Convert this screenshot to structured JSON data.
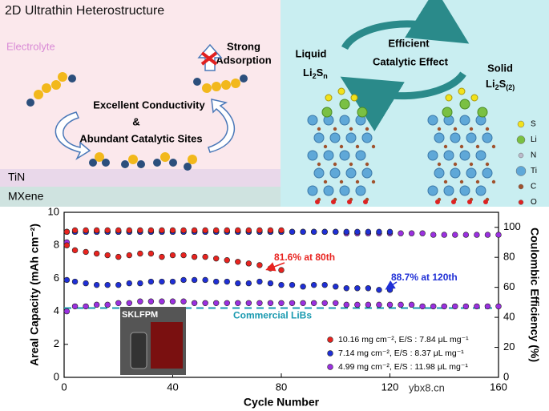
{
  "schematic": {
    "left": {
      "title": "2D Ultrathin Heterostructure",
      "electrolyte": "Electrolyte",
      "strong": "Strong",
      "adsorption": "Adsorption",
      "conductivity": "Excellent Conductivity",
      "amp": "&",
      "sites": "Abundant Catalytic Sites",
      "tin": "TiN",
      "mxene": "MXene"
    },
    "right": {
      "efficient": "Efficient",
      "catalytic": "Catalytic Effect",
      "liquid": "Liquid",
      "liquid_formula": [
        "Li",
        "2",
        "S",
        "n"
      ],
      "solid": "Solid",
      "solid_formula": [
        "Li",
        "2",
        "S",
        "(2)"
      ],
      "legend": [
        "S",
        "Li",
        "N",
        "Ti",
        "C",
        "O"
      ]
    }
  },
  "chart_data": {
    "type": "scatter",
    "xlabel": "Cycle Number",
    "ylabel": "Areal Capacity (mAh cm⁻²)",
    "y2label": "Coulombic Efficiency (%)",
    "xlim": [
      0,
      160
    ],
    "xticks": [
      0,
      40,
      80,
      120,
      160
    ],
    "ylim": [
      0,
      10
    ],
    "yticks": [
      0,
      2,
      4,
      6,
      8,
      10
    ],
    "y2lim": [
      0,
      110
    ],
    "y2ticks": [
      0,
      20,
      40,
      60,
      80,
      100
    ],
    "x": [
      1,
      4,
      8,
      12,
      16,
      20,
      24,
      28,
      32,
      36,
      40,
      44,
      48,
      52,
      56,
      60,
      64,
      68,
      72,
      76,
      80,
      84,
      88,
      92,
      96,
      100,
      104,
      108,
      112,
      116,
      120,
      124,
      128,
      132,
      136,
      140,
      144,
      148,
      152,
      156,
      160
    ],
    "series": [
      {
        "name": "10.16 mg cm⁻², E/S : 7.84 μL mg⁻¹",
        "color": "#e8231f",
        "values": [
          8.0,
          7.7,
          7.6,
          7.5,
          7.4,
          7.3,
          7.4,
          7.5,
          7.5,
          7.3,
          7.4,
          7.4,
          7.3,
          7.3,
          7.2,
          7.1,
          7.0,
          6.9,
          6.8,
          6.6,
          6.5,
          null,
          null,
          null,
          null,
          null,
          null,
          null,
          null,
          null,
          null,
          null,
          null,
          null,
          null,
          null,
          null,
          null,
          null,
          null,
          null
        ],
        "ce_values": [
          97,
          98,
          98,
          98,
          98,
          98,
          98,
          98,
          98,
          98,
          98,
          98,
          98,
          98,
          98,
          98,
          98,
          98,
          98,
          98,
          98,
          null,
          null,
          null,
          null,
          null,
          null,
          null,
          null,
          null,
          null,
          null,
          null,
          null,
          null,
          null,
          null,
          null,
          null,
          null,
          null
        ]
      },
      {
        "name": "7.14 mg cm⁻², E/S : 8.37 μL mg⁻¹",
        "color": "#1f2fd6",
        "values": [
          5.9,
          5.8,
          5.7,
          5.6,
          5.6,
          5.6,
          5.7,
          5.7,
          5.8,
          5.8,
          5.8,
          5.9,
          5.9,
          5.9,
          5.8,
          5.8,
          5.7,
          5.7,
          5.8,
          5.7,
          5.6,
          5.6,
          5.5,
          5.6,
          5.6,
          5.5,
          5.4,
          5.4,
          5.4,
          5.3,
          5.3,
          null,
          null,
          null,
          null,
          null,
          null,
          null,
          null,
          null,
          null
        ],
        "ce_values": [
          97,
          97,
          97,
          97,
          97,
          97,
          97,
          97,
          97,
          97,
          97,
          97,
          97,
          97,
          97,
          97,
          97,
          97,
          97,
          97,
          97,
          97,
          97,
          97,
          97,
          97,
          97,
          97,
          97,
          97,
          97,
          null,
          null,
          null,
          null,
          null,
          null,
          null,
          null,
          null,
          null
        ]
      },
      {
        "name": "4.99 mg cm⁻², E/S : 11.98 μL mg⁻¹",
        "color": "#9b30e0",
        "values": [
          4.0,
          4.3,
          4.3,
          4.4,
          4.4,
          4.5,
          4.5,
          4.6,
          4.6,
          4.6,
          4.6,
          4.6,
          4.5,
          4.5,
          4.5,
          4.5,
          4.5,
          4.5,
          4.5,
          4.5,
          4.5,
          4.5,
          4.5,
          4.5,
          4.5,
          4.5,
          4.4,
          4.4,
          4.4,
          4.4,
          4.4,
          4.4,
          4.4,
          4.3,
          4.3,
          4.3,
          4.3,
          4.3,
          4.3,
          4.3,
          4.3
        ],
        "ce_values": [
          90,
          97,
          97,
          97,
          97,
          97,
          97,
          97,
          97,
          97,
          97,
          97,
          97,
          97,
          97,
          97,
          97,
          97,
          97,
          97,
          97,
          97,
          97,
          97,
          97,
          97,
          96,
          96,
          96,
          96,
          96,
          96,
          96,
          96,
          95,
          95,
          95,
          95,
          95,
          95,
          95
        ]
      }
    ],
    "reference_line": {
      "value": 4.2,
      "label": "Commercial LiBs",
      "color": "#1a9ab0"
    },
    "annotations": [
      {
        "text": "81.6% at 80th",
        "color": "#e8231f"
      },
      {
        "text": "88.7% at 120th",
        "color": "#1f2fd6"
      }
    ],
    "inset_label": "SKLFPM",
    "watermark": "ybx8.cn"
  }
}
